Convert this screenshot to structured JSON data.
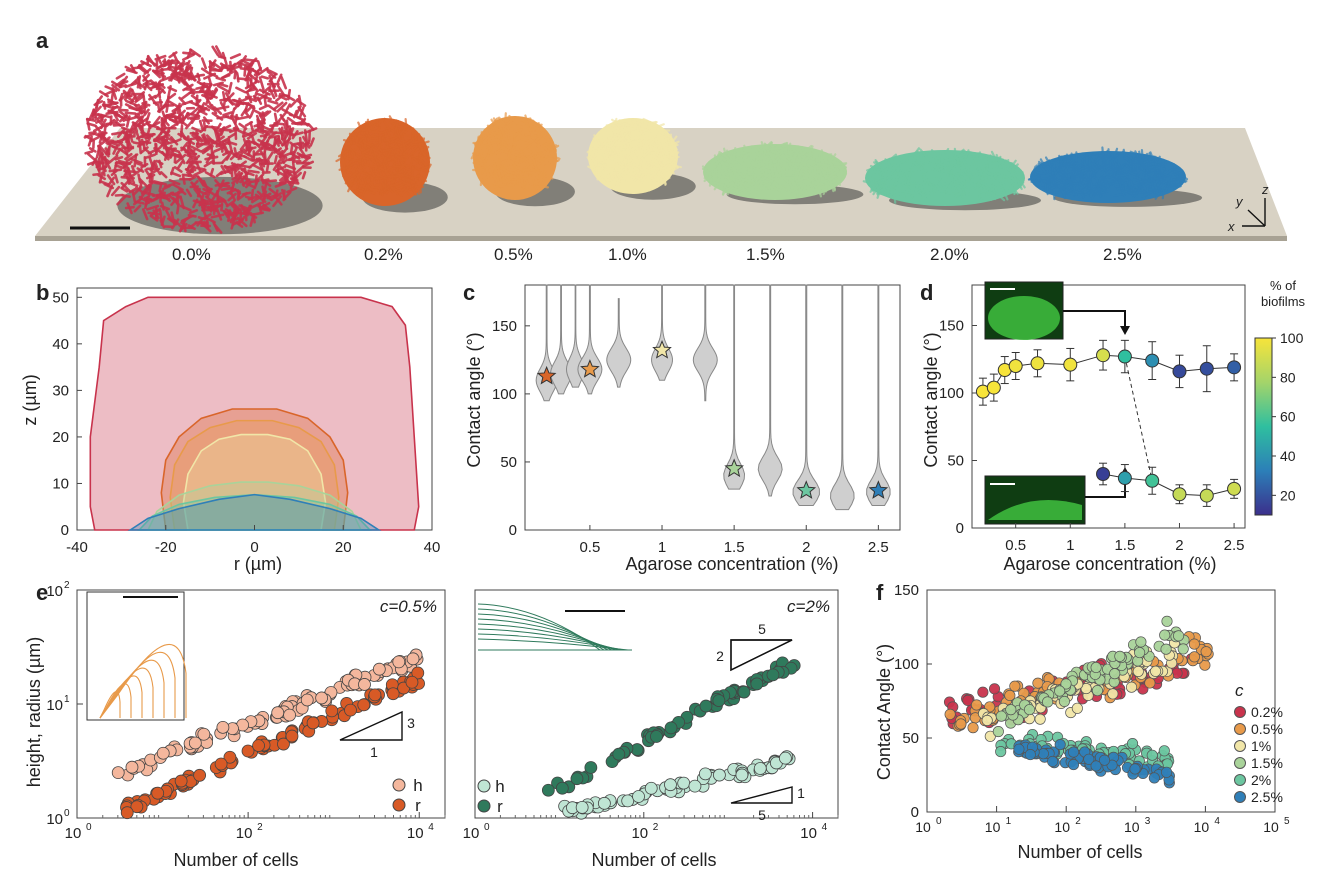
{
  "panel_labels": [
    "a",
    "b",
    "c",
    "d",
    "e",
    "f"
  ],
  "colors": {
    "c00": "#c8334c",
    "c02": "#d9652a",
    "c05": "#e89a4a",
    "c10": "#f1e6a8",
    "c15": "#a9d39a",
    "c20": "#6cc6a0",
    "c25": "#2f7fb8",
    "h05": "#f4b79d",
    "r05": "#d85a26",
    "h2": "#bfe5d4",
    "r2": "#2f7a5c",
    "violin": "#cfcfcf",
    "stage": "#d8d2c4"
  },
  "panel_a": {
    "concentrations": [
      "0.0%",
      "0.2%",
      "0.5%",
      "1.0%",
      "1.5%",
      "2.0%",
      "2.5%"
    ],
    "axes": {
      "x": "x",
      "y": "y",
      "z": "z"
    }
  },
  "chart_data": [
    {
      "panel": "b",
      "type": "area",
      "xlabel": "r (µm)",
      "ylabel": "z (µm)",
      "xlim": [
        -40,
        40
      ],
      "ylim": [
        0,
        52
      ],
      "xticks": [
        -40,
        -20,
        0,
        20,
        40
      ],
      "yticks": [
        0,
        10,
        20,
        30,
        40,
        50
      ],
      "series": [
        {
          "key": "c00",
          "profile": [
            [
              -36,
              0
            ],
            [
              -37,
              5
            ],
            [
              -37,
              20
            ],
            [
              -35,
              35
            ],
            [
              -34,
              45
            ],
            [
              -29,
              48
            ],
            [
              -24,
              50
            ],
            [
              24,
              50
            ],
            [
              31,
              48
            ],
            [
              34,
              44
            ],
            [
              35,
              35
            ],
            [
              36,
              20
            ],
            [
              37,
              5
            ],
            [
              36,
              0
            ]
          ]
        },
        {
          "key": "c02",
          "profile": [
            [
              -20,
              0
            ],
            [
              -21,
              8
            ],
            [
              -20,
              15
            ],
            [
              -17,
              20
            ],
            [
              -12,
              24
            ],
            [
              -5,
              26
            ],
            [
              5,
              26
            ],
            [
              12,
              24
            ],
            [
              17,
              20
            ],
            [
              20,
              15
            ],
            [
              21,
              8
            ],
            [
              20,
              0
            ]
          ]
        },
        {
          "key": "c05",
          "profile": [
            [
              -18,
              0
            ],
            [
              -19,
              7
            ],
            [
              -18,
              14
            ],
            [
              -15,
              19
            ],
            [
              -10,
              22
            ],
            [
              -4,
              23.5
            ],
            [
              4,
              23.5
            ],
            [
              10,
              22
            ],
            [
              15,
              19
            ],
            [
              18,
              14
            ],
            [
              19,
              7
            ],
            [
              18,
              0
            ]
          ]
        },
        {
          "key": "c10",
          "profile": [
            [
              -15,
              0
            ],
            [
              -16,
              6
            ],
            [
              -15,
              12
            ],
            [
              -12,
              17
            ],
            [
              -8,
              19.5
            ],
            [
              -3,
              20.5
            ],
            [
              3,
              20.5
            ],
            [
              8,
              19.5
            ],
            [
              12,
              17
            ],
            [
              15,
              12
            ],
            [
              16,
              6
            ],
            [
              15,
              0
            ]
          ]
        },
        {
          "key": "c15",
          "profile": [
            [
              -24,
              0
            ],
            [
              -22,
              4
            ],
            [
              -17,
              7.5
            ],
            [
              -10,
              9.5
            ],
            [
              -3,
              10.3
            ],
            [
              3,
              10.3
            ],
            [
              10,
              9.5
            ],
            [
              17,
              7.5
            ],
            [
              22,
              4
            ],
            [
              24,
              0
            ]
          ]
        },
        {
          "key": "c20",
          "profile": [
            [
              -26,
              0
            ],
            [
              -23,
              3
            ],
            [
              -17,
              5.5
            ],
            [
              -9,
              7
            ],
            [
              0,
              7.6
            ],
            [
              9,
              7
            ],
            [
              17,
              5.5
            ],
            [
              23,
              3
            ],
            [
              26,
              0
            ]
          ]
        },
        {
          "key": "c25",
          "profile": [
            [
              -28,
              0
            ],
            [
              -24,
              2.5
            ],
            [
              -17,
              4.6
            ],
            [
              -8,
              6.6
            ],
            [
              0,
              7.6
            ],
            [
              8,
              6.6
            ],
            [
              17,
              4.6
            ],
            [
              24,
              2.5
            ],
            [
              28,
              0
            ]
          ]
        }
      ]
    },
    {
      "panel": "c",
      "type": "violin",
      "xlabel": "Agarose concentration (%)",
      "ylabel": "Contact angle (°)",
      "xlim": [
        0.05,
        2.65
      ],
      "ylim": [
        0,
        180
      ],
      "xticks": [
        0.5,
        1,
        1.5,
        2,
        2.5
      ],
      "yticks": [
        0,
        50,
        100,
        150
      ],
      "violins": [
        {
          "x": 0.2,
          "lo": 95,
          "hi": 180,
          "mode": 110,
          "w": 0.07
        },
        {
          "x": 0.3,
          "lo": 100,
          "hi": 180,
          "mode": 115,
          "w": 0.07
        },
        {
          "x": 0.4,
          "lo": 105,
          "hi": 180,
          "mode": 118,
          "w": 0.06
        },
        {
          "x": 0.5,
          "lo": 100,
          "hi": 180,
          "mode": 118,
          "w": 0.08
        },
        {
          "x": 0.7,
          "lo": 105,
          "hi": 170,
          "mode": 125,
          "w": 0.08
        },
        {
          "x": 1.0,
          "lo": 110,
          "hi": 180,
          "mode": 125,
          "w": 0.07
        },
        {
          "x": 1.3,
          "lo": 95,
          "hi": 180,
          "mode": 125,
          "w": 0.08
        },
        {
          "x": 1.5,
          "lo": 30,
          "hi": 180,
          "mode": 40,
          "w": 0.07
        },
        {
          "x": 1.75,
          "lo": 25,
          "hi": 180,
          "mode": 45,
          "w": 0.08
        },
        {
          "x": 2.0,
          "lo": 18,
          "hi": 180,
          "mode": 28,
          "w": 0.09
        },
        {
          "x": 2.25,
          "lo": 15,
          "hi": 180,
          "mode": 25,
          "w": 0.08
        },
        {
          "x": 2.5,
          "lo": 18,
          "hi": 180,
          "mode": 28,
          "w": 0.08
        }
      ],
      "stars": [
        {
          "x": 0.2,
          "y": 113,
          "key": "c02"
        },
        {
          "x": 0.5,
          "y": 118,
          "key": "c05"
        },
        {
          "x": 1.0,
          "y": 132,
          "key": "c10"
        },
        {
          "x": 1.5,
          "y": 45,
          "key": "c15"
        },
        {
          "x": 2.0,
          "y": 29,
          "key": "c20"
        },
        {
          "x": 2.5,
          "y": 29,
          "key": "c25"
        }
      ]
    },
    {
      "panel": "d",
      "type": "line",
      "xlabel": "Agarose concentration (%)",
      "ylabel": "Contact angle (°)",
      "xlim": [
        0.1,
        2.6
      ],
      "ylim": [
        0,
        180
      ],
      "xticks": [
        0.5,
        1,
        1.5,
        2,
        2.5
      ],
      "yticks": [
        0,
        50,
        100,
        150
      ],
      "colorbar": {
        "title": "% of biofilms",
        "ticks": [
          20,
          40,
          60,
          80,
          100
        ],
        "range": [
          10,
          100
        ]
      },
      "series": [
        {
          "name": "upper",
          "points": [
            {
              "x": 0.2,
              "y": 101,
              "err": 10,
              "pct": 100
            },
            {
              "x": 0.3,
              "y": 104,
              "err": 10,
              "pct": 100
            },
            {
              "x": 0.4,
              "y": 117,
              "err": 10,
              "pct": 100
            },
            {
              "x": 0.5,
              "y": 120,
              "err": 10,
              "pct": 98
            },
            {
              "x": 0.7,
              "y": 122,
              "err": 10,
              "pct": 97
            },
            {
              "x": 1.0,
              "y": 121,
              "err": 12,
              "pct": 98
            },
            {
              "x": 1.3,
              "y": 128,
              "err": 11,
              "pct": 90
            },
            {
              "x": 1.5,
              "y": 127,
              "err": 12,
              "pct": 55
            },
            {
              "x": 1.75,
              "y": 124,
              "err": 14,
              "pct": 40
            },
            {
              "x": 2.0,
              "y": 116,
              "err": 12,
              "pct": 18
            },
            {
              "x": 2.25,
              "y": 118,
              "err": 17,
              "pct": 20
            },
            {
              "x": 2.5,
              "y": 119,
              "err": 10,
              "pct": 25
            }
          ]
        },
        {
          "name": "lower",
          "points": [
            {
              "x": 1.3,
              "y": 40,
              "err": 8,
              "pct": 15
            },
            {
              "x": 1.5,
              "y": 37,
              "err": 10,
              "pct": 45
            },
            {
              "x": 1.75,
              "y": 35,
              "err": 10,
              "pct": 58
            },
            {
              "x": 2.0,
              "y": 25,
              "err": 7,
              "pct": 85
            },
            {
              "x": 2.25,
              "y": 24,
              "err": 8,
              "pct": 85
            },
            {
              "x": 2.5,
              "y": 29,
              "err": 7,
              "pct": 88
            }
          ]
        }
      ]
    },
    {
      "panel": "e1",
      "type": "scatter",
      "annotation": "c=0.5%",
      "xlabel": "Number of cells",
      "ylabel": "height, radius (µm)",
      "xscale": "log",
      "yscale": "log",
      "xlim": [
        1,
        20000
      ],
      "ylim": [
        1,
        100
      ],
      "slope": {
        "rise": "3",
        "run": "1"
      },
      "legend": [
        "h",
        "r"
      ],
      "series": [
        {
          "name": "h",
          "key": "h05",
          "x0": 2,
          "y0": 2.2,
          "x1": 10000,
          "y1": 25,
          "n": 95,
          "scatter": 0.06
        },
        {
          "name": "r",
          "key": "r05",
          "x0": 2,
          "y0": 1.0,
          "x1": 10000,
          "y1": 17,
          "n": 95,
          "scatter": 0.05
        }
      ]
    },
    {
      "panel": "e2",
      "type": "scatter",
      "annotation": "c=2%",
      "xlabel": "Number of cells",
      "xscale": "log",
      "yscale": "log",
      "xlim": [
        1,
        20000
      ],
      "ylim": [
        1,
        100
      ],
      "slope_top": {
        "rise": "2",
        "run": "5"
      },
      "slope_bottom": {
        "rise": "1",
        "run": "5"
      },
      "legend": [
        "h",
        "r"
      ],
      "series": [
        {
          "name": "r",
          "key": "r2",
          "x0": 7,
          "y0": 1.6,
          "x1": 7000,
          "y1": 25,
          "n": 70,
          "scatter": 0.05
        },
        {
          "name": "h",
          "key": "h2",
          "x0": 10,
          "y0": 1.1,
          "x1": 6000,
          "y1": 3.2,
          "n": 70,
          "scatter": 0.05
        }
      ]
    },
    {
      "panel": "f",
      "type": "scatter",
      "xlabel": "Number of cells",
      "ylabel": "Contact Angle (°)",
      "xscale": "log",
      "xlim": [
        1,
        100000
      ],
      "ylim": [
        0,
        150
      ],
      "yticks": [
        0,
        50,
        100,
        150
      ],
      "legend_title": "c",
      "legend": [
        "0.2%",
        "0.5%",
        "1%",
        "1.5%",
        "2%",
        "2.5%"
      ],
      "series": [
        {
          "name": "0.2%",
          "key": "c00",
          "lx0": 0.3,
          "lx1": 3.8,
          "y0": 65,
          "y1": 95,
          "spread": 12,
          "n": 70
        },
        {
          "name": "0.5%",
          "key": "c05",
          "lx0": 0.3,
          "lx1": 4.1,
          "y0": 62,
          "y1": 110,
          "spread": 10,
          "n": 90
        },
        {
          "name": "1%",
          "key": "c10",
          "lx0": 0.8,
          "lx1": 3.6,
          "y0": 60,
          "y1": 105,
          "spread": 10,
          "n": 70
        },
        {
          "name": "1.5%",
          "key": "c15",
          "lx0": 1.0,
          "lx1": 3.7,
          "y0": 60,
          "y1": 122,
          "spread": 9,
          "n": 80
        },
        {
          "name": "2%",
          "key": "c20",
          "lx0": 1.0,
          "lx1": 3.5,
          "y0": 48,
          "y1": 35,
          "spread": 6,
          "n": 80
        },
        {
          "name": "2.5%",
          "key": "c25",
          "lx0": 1.3,
          "lx1": 3.5,
          "y0": 42,
          "y1": 26,
          "spread": 5,
          "n": 80
        }
      ]
    }
  ]
}
